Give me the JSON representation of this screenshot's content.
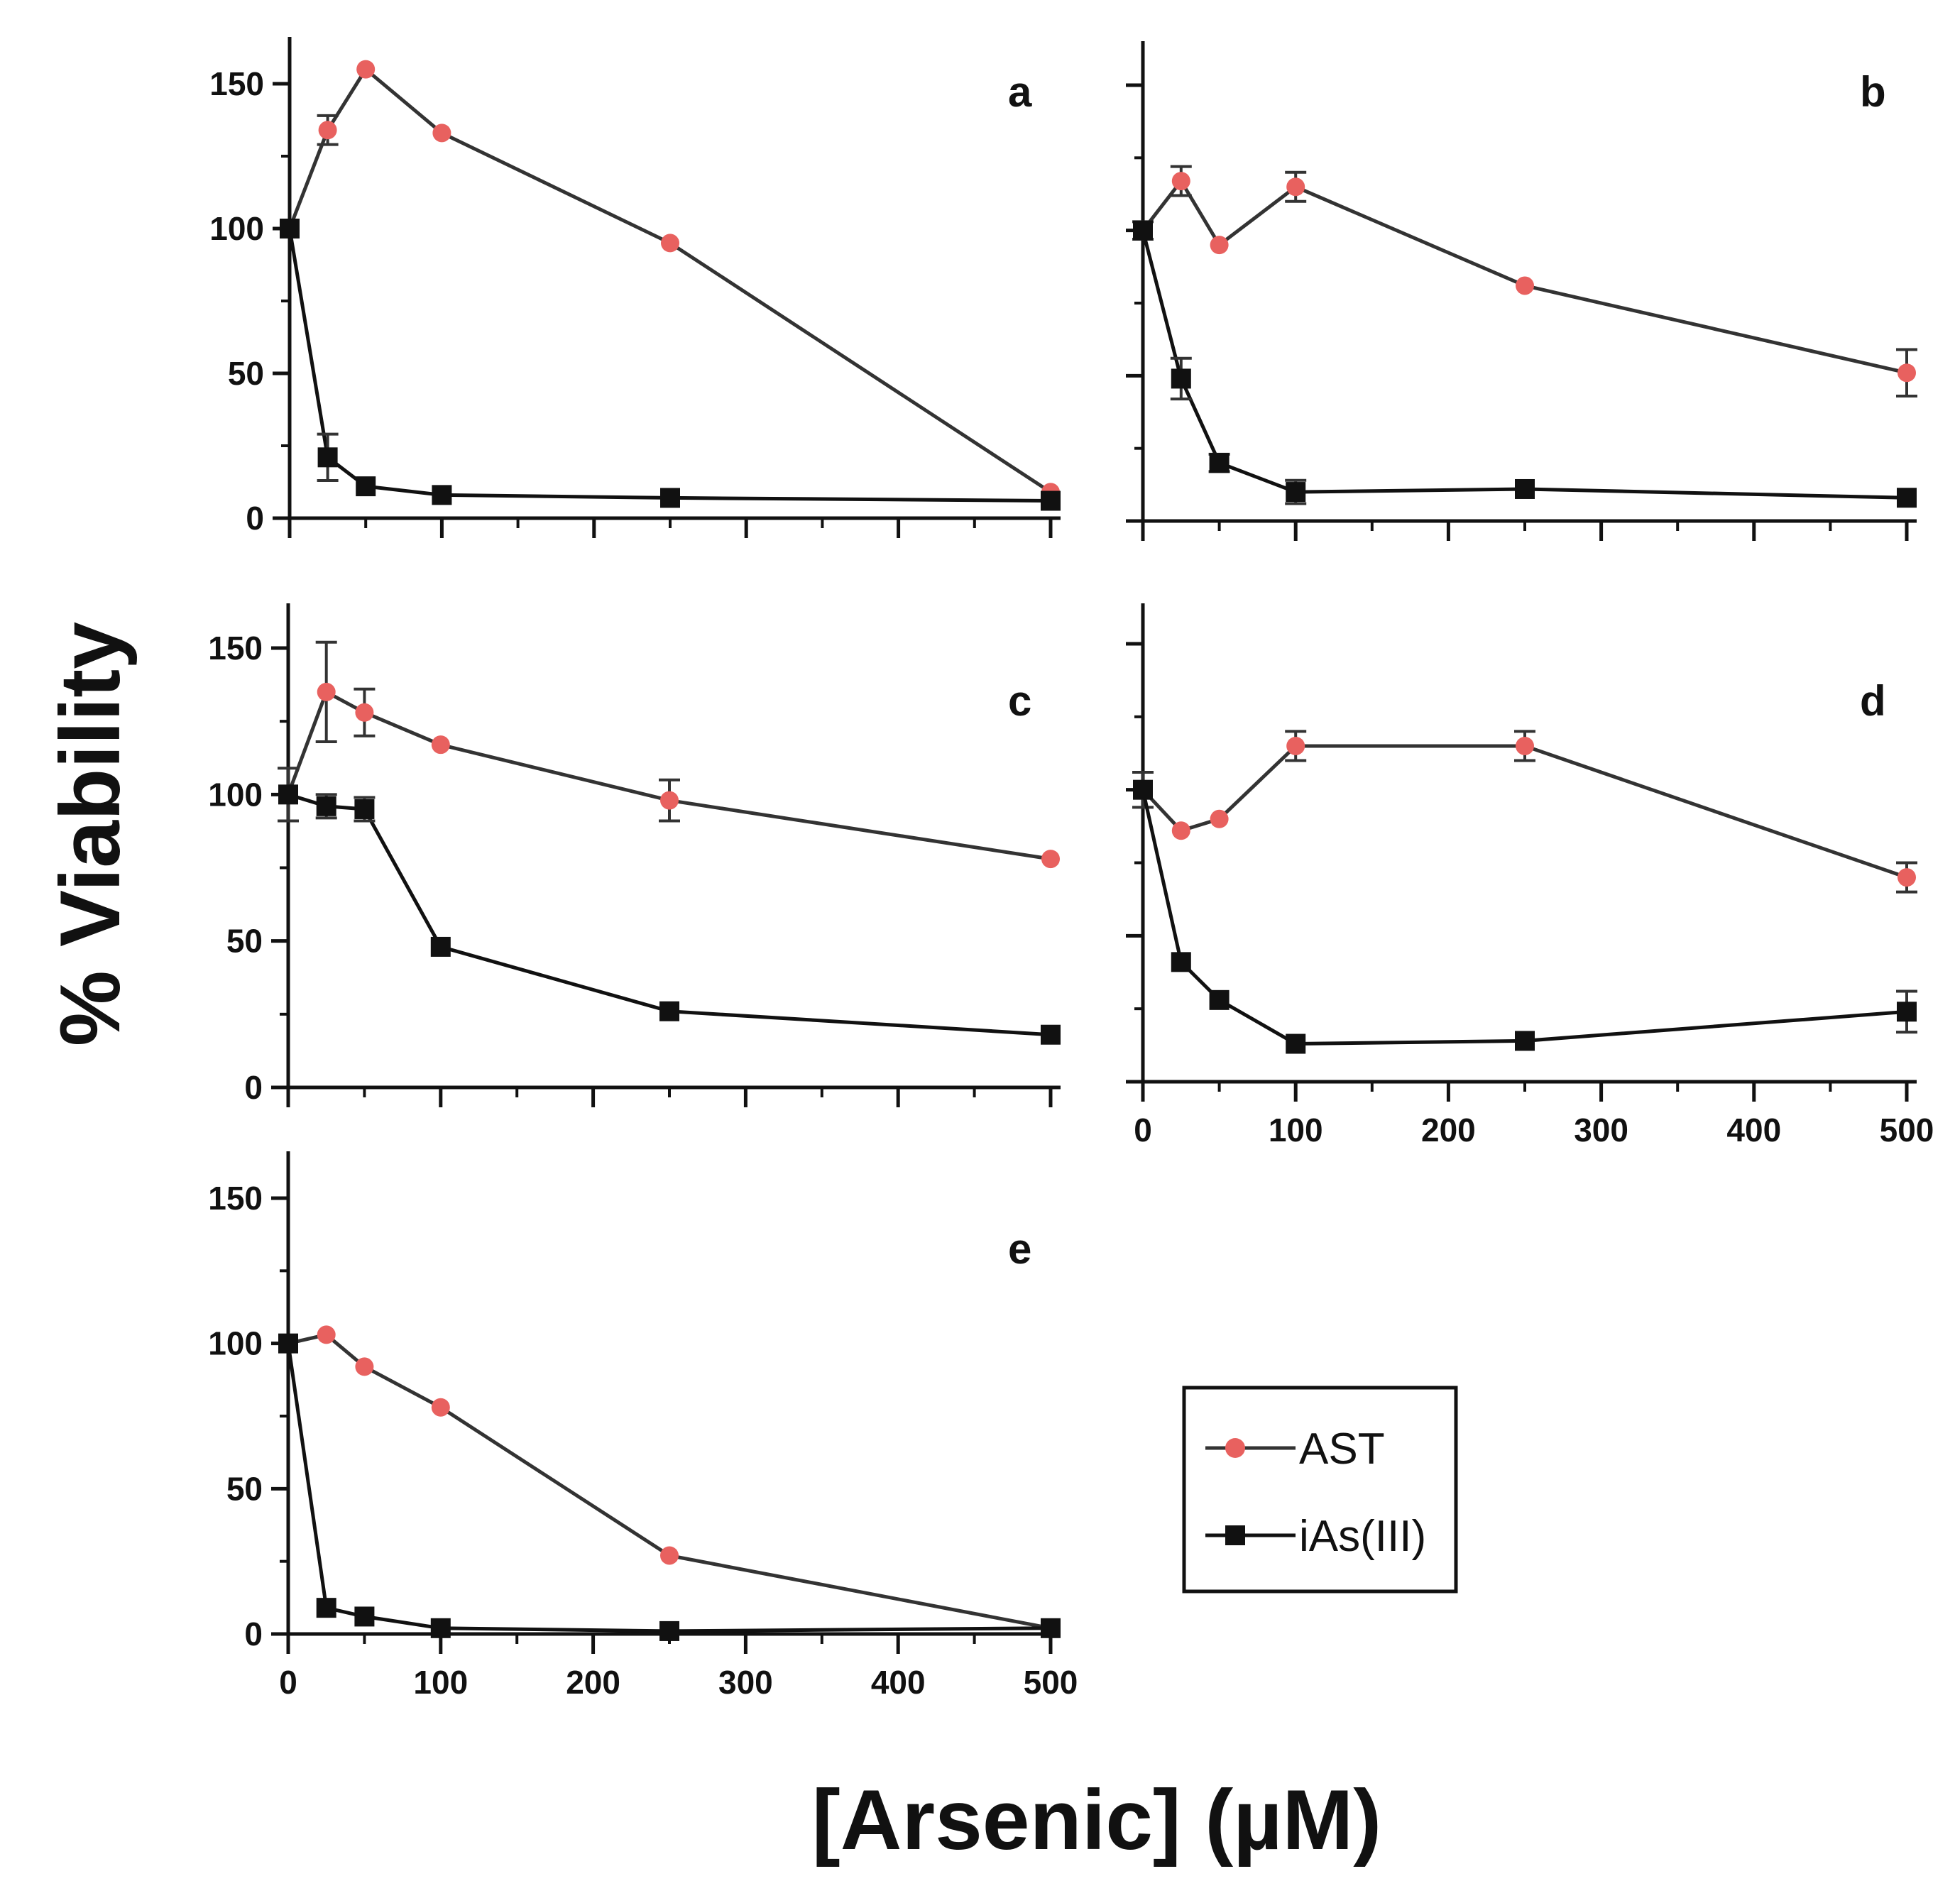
{
  "figure": {
    "ylabel": "% Viability",
    "xlabel": "[Arsenic] (µM)"
  },
  "colors": {
    "ast_marker": "#e8615f",
    "ias_marker": "#111111",
    "line": "#333333",
    "axis": "#111111"
  },
  "legend": {
    "items": [
      {
        "label": "AST",
        "marker": "circle"
      },
      {
        "label": "iAs(III)",
        "marker": "square"
      }
    ]
  },
  "chart_data": [
    {
      "panel": "a",
      "type": "line",
      "xlim": [
        0,
        500
      ],
      "ylim": [
        0,
        165
      ],
      "yticks": [
        0,
        50,
        100,
        150
      ],
      "xticks": [
        0,
        100,
        200,
        300,
        400,
        500
      ],
      "show_y_tick_labels": true,
      "show_x_tick_labels": false,
      "series": [
        {
          "name": "AST",
          "x": [
            0,
            25,
            50,
            100,
            250,
            500
          ],
          "y": [
            100,
            134,
            155,
            133,
            95,
            9
          ],
          "err": [
            0,
            5,
            0,
            0,
            0,
            0
          ]
        },
        {
          "name": "iAs(III)",
          "x": [
            0,
            25,
            50,
            100,
            250,
            500
          ],
          "y": [
            100,
            21,
            11,
            8,
            7,
            6
          ],
          "err": [
            0,
            8,
            0,
            0,
            0,
            0
          ]
        }
      ]
    },
    {
      "panel": "b",
      "type": "line",
      "xlim": [
        0,
        500
      ],
      "ylim": [
        0,
        165
      ],
      "yticks": [
        0,
        50,
        100,
        150
      ],
      "xticks": [
        0,
        100,
        200,
        300,
        400,
        500
      ],
      "show_y_tick_labels": false,
      "show_x_tick_labels": false,
      "series": [
        {
          "name": "AST",
          "x": [
            0,
            25,
            50,
            100,
            250,
            500
          ],
          "y": [
            100,
            117,
            95,
            115,
            81,
            51
          ],
          "err": [
            3,
            5,
            0,
            5,
            0,
            8
          ]
        },
        {
          "name": "iAs(III)",
          "x": [
            0,
            25,
            50,
            100,
            250,
            500
          ],
          "y": [
            100,
            49,
            20,
            10,
            11,
            8
          ],
          "err": [
            0,
            7,
            3,
            4,
            0,
            0
          ]
        }
      ]
    },
    {
      "panel": "c",
      "type": "line",
      "xlim": [
        0,
        500
      ],
      "ylim": [
        0,
        165
      ],
      "yticks": [
        0,
        50,
        100,
        150
      ],
      "xticks": [
        0,
        100,
        200,
        300,
        400,
        500
      ],
      "show_y_tick_labels": true,
      "show_x_tick_labels": false,
      "series": [
        {
          "name": "AST",
          "x": [
            0,
            25,
            50,
            100,
            250,
            500
          ],
          "y": [
            100,
            135,
            128,
            117,
            98,
            78
          ],
          "err": [
            9,
            17,
            8,
            0,
            7,
            0
          ]
        },
        {
          "name": "iAs(III)",
          "x": [
            0,
            25,
            50,
            100,
            250,
            500
          ],
          "y": [
            100,
            96,
            95,
            48,
            26,
            18
          ],
          "err": [
            0,
            4,
            4,
            0,
            0,
            0
          ]
        }
      ]
    },
    {
      "panel": "d",
      "type": "line",
      "xlim": [
        0,
        500
      ],
      "ylim": [
        0,
        165
      ],
      "yticks": [
        0,
        50,
        100,
        150
      ],
      "xticks": [
        0,
        100,
        200,
        300,
        400,
        500
      ],
      "show_y_tick_labels": false,
      "show_x_tick_labels": true,
      "series": [
        {
          "name": "AST",
          "x": [
            0,
            25,
            50,
            100,
            250,
            500
          ],
          "y": [
            100,
            86,
            90,
            115,
            115,
            70
          ],
          "err": [
            6,
            0,
            0,
            5,
            5,
            5
          ]
        },
        {
          "name": "iAs(III)",
          "x": [
            0,
            25,
            50,
            100,
            250,
            500
          ],
          "y": [
            100,
            41,
            28,
            13,
            14,
            24
          ],
          "err": [
            0,
            0,
            0,
            0,
            0,
            7
          ]
        }
      ]
    },
    {
      "panel": "e",
      "type": "line",
      "xlim": [
        0,
        500
      ],
      "ylim": [
        0,
        165
      ],
      "yticks": [
        0,
        50,
        100,
        150
      ],
      "xticks": [
        0,
        100,
        200,
        300,
        400,
        500
      ],
      "show_y_tick_labels": true,
      "show_x_tick_labels": true,
      "series": [
        {
          "name": "AST",
          "x": [
            0,
            25,
            50,
            100,
            250,
            500
          ],
          "y": [
            100,
            103,
            92,
            78,
            27,
            2
          ],
          "err": [
            0,
            0,
            0,
            0,
            0,
            0
          ]
        },
        {
          "name": "iAs(III)",
          "x": [
            0,
            25,
            50,
            100,
            250,
            500
          ],
          "y": [
            100,
            9,
            6,
            2,
            1,
            2
          ],
          "err": [
            0,
            0,
            0,
            0,
            0,
            0
          ]
        }
      ]
    }
  ]
}
